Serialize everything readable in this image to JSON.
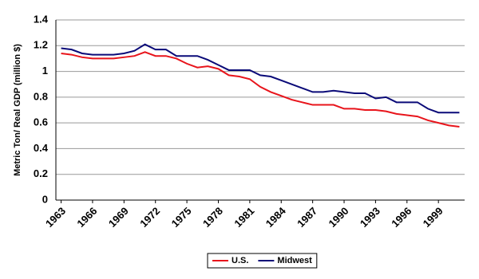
{
  "chart_data": {
    "type": "line",
    "y_label": "Metric Ton/ Real GDP (million $)",
    "x": [
      1963,
      1964,
      1965,
      1966,
      1967,
      1968,
      1969,
      1970,
      1971,
      1972,
      1973,
      1974,
      1975,
      1976,
      1977,
      1978,
      1979,
      1980,
      1981,
      1982,
      1983,
      1984,
      1985,
      1986,
      1987,
      1988,
      1989,
      1990,
      1991,
      1992,
      1993,
      1994,
      1995,
      1996,
      1997,
      1998,
      1999,
      2000,
      2001
    ],
    "series": [
      {
        "name": "U.S.",
        "color": "#e8141b",
        "values": [
          1.14,
          1.13,
          1.11,
          1.1,
          1.1,
          1.1,
          1.11,
          1.12,
          1.15,
          1.12,
          1.12,
          1.1,
          1.06,
          1.03,
          1.04,
          1.02,
          0.97,
          0.96,
          0.94,
          0.88,
          0.84,
          0.81,
          0.78,
          0.76,
          0.74,
          0.74,
          0.74,
          0.71,
          0.71,
          0.7,
          0.7,
          0.69,
          0.67,
          0.66,
          0.65,
          0.62,
          0.6,
          0.58,
          0.57
        ]
      },
      {
        "name": "Midwest",
        "color": "#0a0a78",
        "values": [
          1.18,
          1.17,
          1.14,
          1.13,
          1.13,
          1.13,
          1.14,
          1.16,
          1.21,
          1.17,
          1.17,
          1.12,
          1.12,
          1.12,
          1.09,
          1.05,
          1.01,
          1.01,
          1.01,
          0.97,
          0.96,
          0.93,
          0.9,
          0.87,
          0.84,
          0.84,
          0.85,
          0.84,
          0.83,
          0.83,
          0.79,
          0.8,
          0.76,
          0.76,
          0.76,
          0.71,
          0.68,
          0.68,
          0.68
        ]
      }
    ],
    "xlim": [
      1962.5,
      2001.5
    ],
    "xticks": [
      1963,
      1966,
      1969,
      1972,
      1975,
      1978,
      1981,
      1984,
      1987,
      1990,
      1993,
      1996,
      1999
    ],
    "ylim": [
      0,
      1.4
    ],
    "yticks": [
      0,
      0.2,
      0.4,
      0.6,
      0.8,
      1,
      1.2,
      1.4
    ],
    "grid": true,
    "legend": "bottom"
  }
}
